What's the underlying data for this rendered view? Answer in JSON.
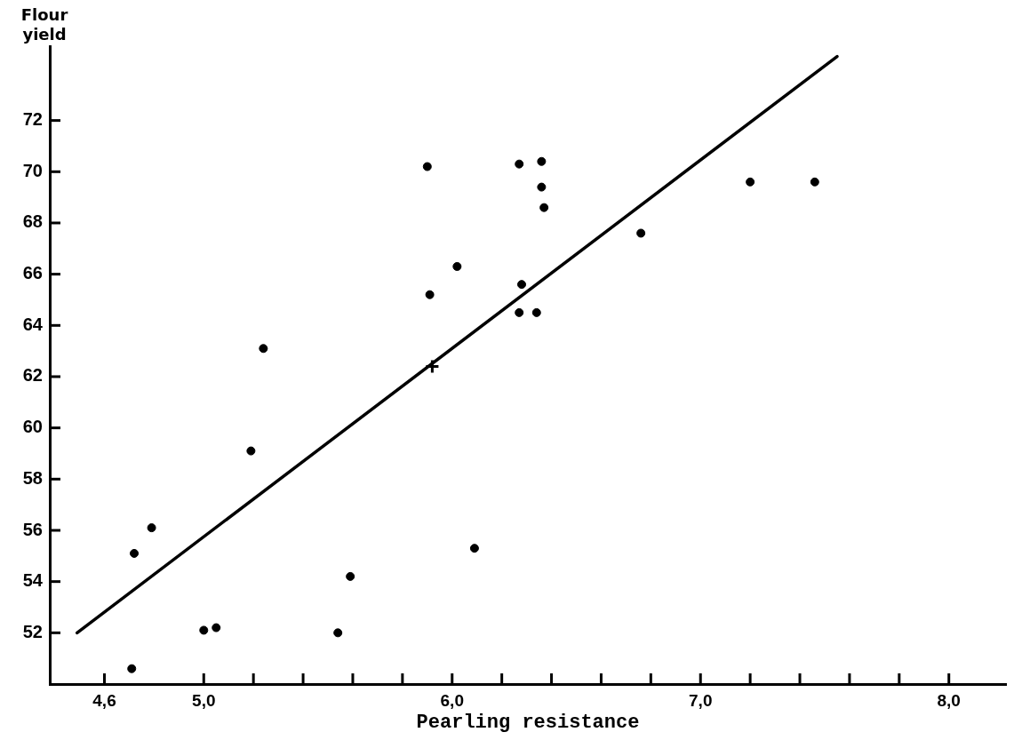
{
  "chart_data": {
    "type": "scatter",
    "xlabel": "Pearling resistance",
    "ylabel": "Flour yield",
    "xlim": [
      4.38,
      8.23
    ],
    "ylim": [
      50.0,
      74.9
    ],
    "xticks": [
      {
        "value": 4.6,
        "label": "4,6"
      },
      {
        "value": 5.0,
        "label": "5,0"
      },
      {
        "value": 5.2,
        "label": null
      },
      {
        "value": 5.4,
        "label": null
      },
      {
        "value": 5.6,
        "label": null
      },
      {
        "value": 5.8,
        "label": null
      },
      {
        "value": 6.0,
        "label": "6,0"
      },
      {
        "value": 6.2,
        "label": null
      },
      {
        "value": 6.4,
        "label": null
      },
      {
        "value": 6.6,
        "label": null
      },
      {
        "value": 6.8,
        "label": null
      },
      {
        "value": 7.0,
        "label": "7,0"
      },
      {
        "value": 7.2,
        "label": null
      },
      {
        "value": 7.4,
        "label": null
      },
      {
        "value": 7.6,
        "label": null
      },
      {
        "value": 7.8,
        "label": null
      },
      {
        "value": 8.0,
        "label": "8,0"
      }
    ],
    "yticks": [
      52,
      54,
      56,
      58,
      60,
      62,
      64,
      66,
      68,
      70,
      72
    ],
    "grid": false,
    "legend": false,
    "series": [
      {
        "type": "scatter",
        "color": "#000000",
        "marker": "circle",
        "x": [
          4.71,
          4.72,
          4.79,
          5.0,
          5.05,
          5.19,
          5.24,
          5.54,
          5.59,
          5.9,
          5.91,
          6.02,
          6.09,
          6.27,
          6.28,
          6.27,
          6.34,
          6.36,
          6.36,
          6.37,
          6.76,
          7.2,
          7.46
        ],
        "values": [
          50.6,
          55.1,
          56.1,
          52.1,
          52.2,
          59.1,
          63.1,
          52.0,
          54.2,
          70.2,
          65.2,
          66.3,
          55.3,
          70.3,
          65.6,
          64.5,
          64.5,
          70.4,
          69.4,
          68.6,
          67.6,
          69.6,
          69.6
        ]
      },
      {
        "type": "scatter",
        "color": "#000000",
        "marker": "cross",
        "x": [
          5.92
        ],
        "values": [
          62.4
        ]
      },
      {
        "type": "line",
        "color": "#000000",
        "marker": "none",
        "line_style": "solid",
        "x": [
          4.49,
          7.55
        ],
        "values": [
          52.0,
          74.5
        ]
      }
    ]
  }
}
